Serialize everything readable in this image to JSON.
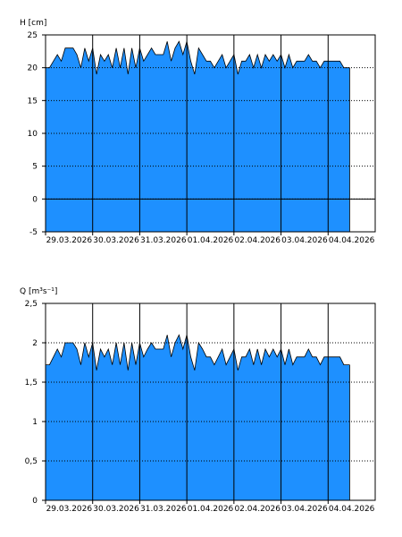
{
  "colors": {
    "area_fill": "#1e90ff",
    "line": "#000000",
    "grid": "#000000",
    "background": "#ffffff"
  },
  "chart_data": [
    {
      "type": "area",
      "ylabel": "H [cm]",
      "ylim": [
        -5,
        25
      ],
      "yticks": [
        -5,
        0,
        5,
        10,
        15,
        20,
        25
      ],
      "ytick_labels": [
        "-5",
        "0",
        "5",
        "10",
        "15",
        "20",
        "25"
      ],
      "xlim": [
        "2026-03-29T00:00",
        "2026-04-05T00:00"
      ],
      "xtick_labels": [
        "29.03.2026",
        "30.03.2026",
        "31.03.2026",
        "01.04.2026",
        "02.04.2026",
        "03.04.2026",
        "04.04.2026"
      ],
      "zero_line": true,
      "grid": "dotted horizontal, solid vertical at midnights",
      "series": [
        {
          "x": [
            "2026-03-29T00:00",
            "2026-03-29T02:00",
            "2026-03-29T04:00",
            "2026-03-29T06:00",
            "2026-03-29T08:00",
            "2026-03-29T10:00",
            "2026-03-29T12:00",
            "2026-03-29T14:00",
            "2026-03-29T16:00",
            "2026-03-29T18:00",
            "2026-03-29T20:00",
            "2026-03-29T22:00",
            "2026-03-30T00:00",
            "2026-03-30T02:00",
            "2026-03-30T04:00",
            "2026-03-30T06:00",
            "2026-03-30T08:00",
            "2026-03-30T10:00",
            "2026-03-30T12:00",
            "2026-03-30T14:00",
            "2026-03-30T16:00",
            "2026-03-30T18:00",
            "2026-03-30T20:00",
            "2026-03-30T22:00",
            "2026-03-31T00:00",
            "2026-03-31T02:00",
            "2026-03-31T04:00",
            "2026-03-31T06:00",
            "2026-03-31T08:00",
            "2026-03-31T10:00",
            "2026-03-31T12:00",
            "2026-03-31T14:00",
            "2026-03-31T16:00",
            "2026-03-31T18:00",
            "2026-03-31T20:00",
            "2026-03-31T22:00",
            "2026-04-01T00:00",
            "2026-04-01T02:00",
            "2026-04-01T04:00",
            "2026-04-01T06:00",
            "2026-04-01T08:00",
            "2026-04-01T10:00",
            "2026-04-01T12:00",
            "2026-04-01T14:00",
            "2026-04-01T16:00",
            "2026-04-01T18:00",
            "2026-04-01T20:00",
            "2026-04-01T22:00",
            "2026-04-02T00:00",
            "2026-04-02T02:00",
            "2026-04-02T04:00",
            "2026-04-02T06:00",
            "2026-04-02T08:00",
            "2026-04-02T10:00",
            "2026-04-02T12:00",
            "2026-04-02T14:00",
            "2026-04-02T16:00",
            "2026-04-02T18:00",
            "2026-04-02T20:00",
            "2026-04-02T22:00",
            "2026-04-03T00:00",
            "2026-04-03T02:00",
            "2026-04-03T04:00",
            "2026-04-03T06:00",
            "2026-04-03T08:00",
            "2026-04-03T10:00",
            "2026-04-03T12:00",
            "2026-04-03T14:00",
            "2026-04-03T16:00",
            "2026-04-03T18:00",
            "2026-04-03T20:00",
            "2026-04-03T22:00",
            "2026-04-04T00:00",
            "2026-04-04T02:00",
            "2026-04-04T04:00",
            "2026-04-04T06:00",
            "2026-04-04T08:00",
            "2026-04-04T10:00",
            "2026-04-04T11:00"
          ],
          "values": [
            20,
            20,
            21,
            22,
            21,
            23,
            23,
            23,
            22,
            20,
            23,
            21,
            23,
            19,
            22,
            21,
            22,
            20,
            23,
            20,
            23,
            19,
            23,
            20,
            23,
            21,
            22,
            23,
            22,
            22,
            22,
            24,
            21,
            23,
            24,
            22,
            24,
            21,
            19,
            23,
            22,
            21,
            21,
            20,
            21,
            22,
            20,
            21,
            22,
            19,
            21,
            21,
            22,
            20,
            22,
            20,
            22,
            21,
            22,
            21,
            22,
            20,
            22,
            20,
            21,
            21,
            21,
            22,
            21,
            21,
            20,
            21,
            21,
            21,
            21,
            21,
            20,
            20,
            20
          ]
        }
      ]
    },
    {
      "type": "area",
      "ylabel": "Q [m³s⁻¹]",
      "ylim": [
        0,
        2.5
      ],
      "yticks": [
        0,
        0.5,
        1,
        1.5,
        2,
        2.5
      ],
      "ytick_labels": [
        "0",
        "0,5",
        "1",
        "1,5",
        "2",
        "2,5"
      ],
      "xlim": [
        "2026-03-29T00:00",
        "2026-04-05T00:00"
      ],
      "xtick_labels": [
        "29.03.2026",
        "30.03.2026",
        "31.03.2026",
        "01.04.2026",
        "02.04.2026",
        "03.04.2026",
        "04.04.2026"
      ],
      "zero_line": false,
      "grid": "dotted horizontal, solid vertical at midnights",
      "series": [
        {
          "x": [
            "2026-03-29T00:00",
            "2026-03-29T02:00",
            "2026-03-29T04:00",
            "2026-03-29T06:00",
            "2026-03-29T08:00",
            "2026-03-29T10:00",
            "2026-03-29T12:00",
            "2026-03-29T14:00",
            "2026-03-29T16:00",
            "2026-03-29T18:00",
            "2026-03-29T20:00",
            "2026-03-29T22:00",
            "2026-03-30T00:00",
            "2026-03-30T02:00",
            "2026-03-30T04:00",
            "2026-03-30T06:00",
            "2026-03-30T08:00",
            "2026-03-30T10:00",
            "2026-03-30T12:00",
            "2026-03-30T14:00",
            "2026-03-30T16:00",
            "2026-03-30T18:00",
            "2026-03-30T20:00",
            "2026-03-30T22:00",
            "2026-03-31T00:00",
            "2026-03-31T02:00",
            "2026-03-31T04:00",
            "2026-03-31T06:00",
            "2026-03-31T08:00",
            "2026-03-31T10:00",
            "2026-03-31T12:00",
            "2026-03-31T14:00",
            "2026-03-31T16:00",
            "2026-03-31T18:00",
            "2026-03-31T20:00",
            "2026-03-31T22:00",
            "2026-04-01T00:00",
            "2026-04-01T02:00",
            "2026-04-01T04:00",
            "2026-04-01T06:00",
            "2026-04-01T08:00",
            "2026-04-01T10:00",
            "2026-04-01T12:00",
            "2026-04-01T14:00",
            "2026-04-01T16:00",
            "2026-04-01T18:00",
            "2026-04-01T20:00",
            "2026-04-01T22:00",
            "2026-04-02T00:00",
            "2026-04-02T02:00",
            "2026-04-02T04:00",
            "2026-04-02T06:00",
            "2026-04-02T08:00",
            "2026-04-02T10:00",
            "2026-04-02T12:00",
            "2026-04-02T14:00",
            "2026-04-02T16:00",
            "2026-04-02T18:00",
            "2026-04-02T20:00",
            "2026-04-02T22:00",
            "2026-04-03T00:00",
            "2026-04-03T02:00",
            "2026-04-03T04:00",
            "2026-04-03T06:00",
            "2026-04-03T08:00",
            "2026-04-03T10:00",
            "2026-04-03T12:00",
            "2026-04-03T14:00",
            "2026-04-03T16:00",
            "2026-04-03T18:00",
            "2026-04-03T20:00",
            "2026-04-03T22:00",
            "2026-04-04T00:00",
            "2026-04-04T02:00",
            "2026-04-04T04:00",
            "2026-04-04T06:00",
            "2026-04-04T08:00",
            "2026-04-04T10:00",
            "2026-04-04T11:00"
          ],
          "values": [
            1.72,
            1.72,
            1.82,
            1.92,
            1.82,
            2.0,
            2.0,
            2.0,
            1.92,
            1.72,
            2.0,
            1.82,
            2.0,
            1.65,
            1.92,
            1.82,
            1.92,
            1.72,
            2.0,
            1.72,
            2.0,
            1.65,
            2.0,
            1.72,
            2.0,
            1.82,
            1.92,
            2.0,
            1.92,
            1.92,
            1.92,
            2.1,
            1.82,
            2.0,
            2.1,
            1.92,
            2.1,
            1.82,
            1.65,
            2.0,
            1.92,
            1.82,
            1.82,
            1.72,
            1.82,
            1.92,
            1.72,
            1.82,
            1.92,
            1.65,
            1.82,
            1.82,
            1.92,
            1.72,
            1.92,
            1.72,
            1.92,
            1.82,
            1.92,
            1.82,
            1.92,
            1.72,
            1.92,
            1.72,
            1.82,
            1.82,
            1.82,
            1.92,
            1.82,
            1.82,
            1.72,
            1.82,
            1.82,
            1.82,
            1.82,
            1.82,
            1.72,
            1.72,
            1.72
          ]
        }
      ]
    }
  ]
}
